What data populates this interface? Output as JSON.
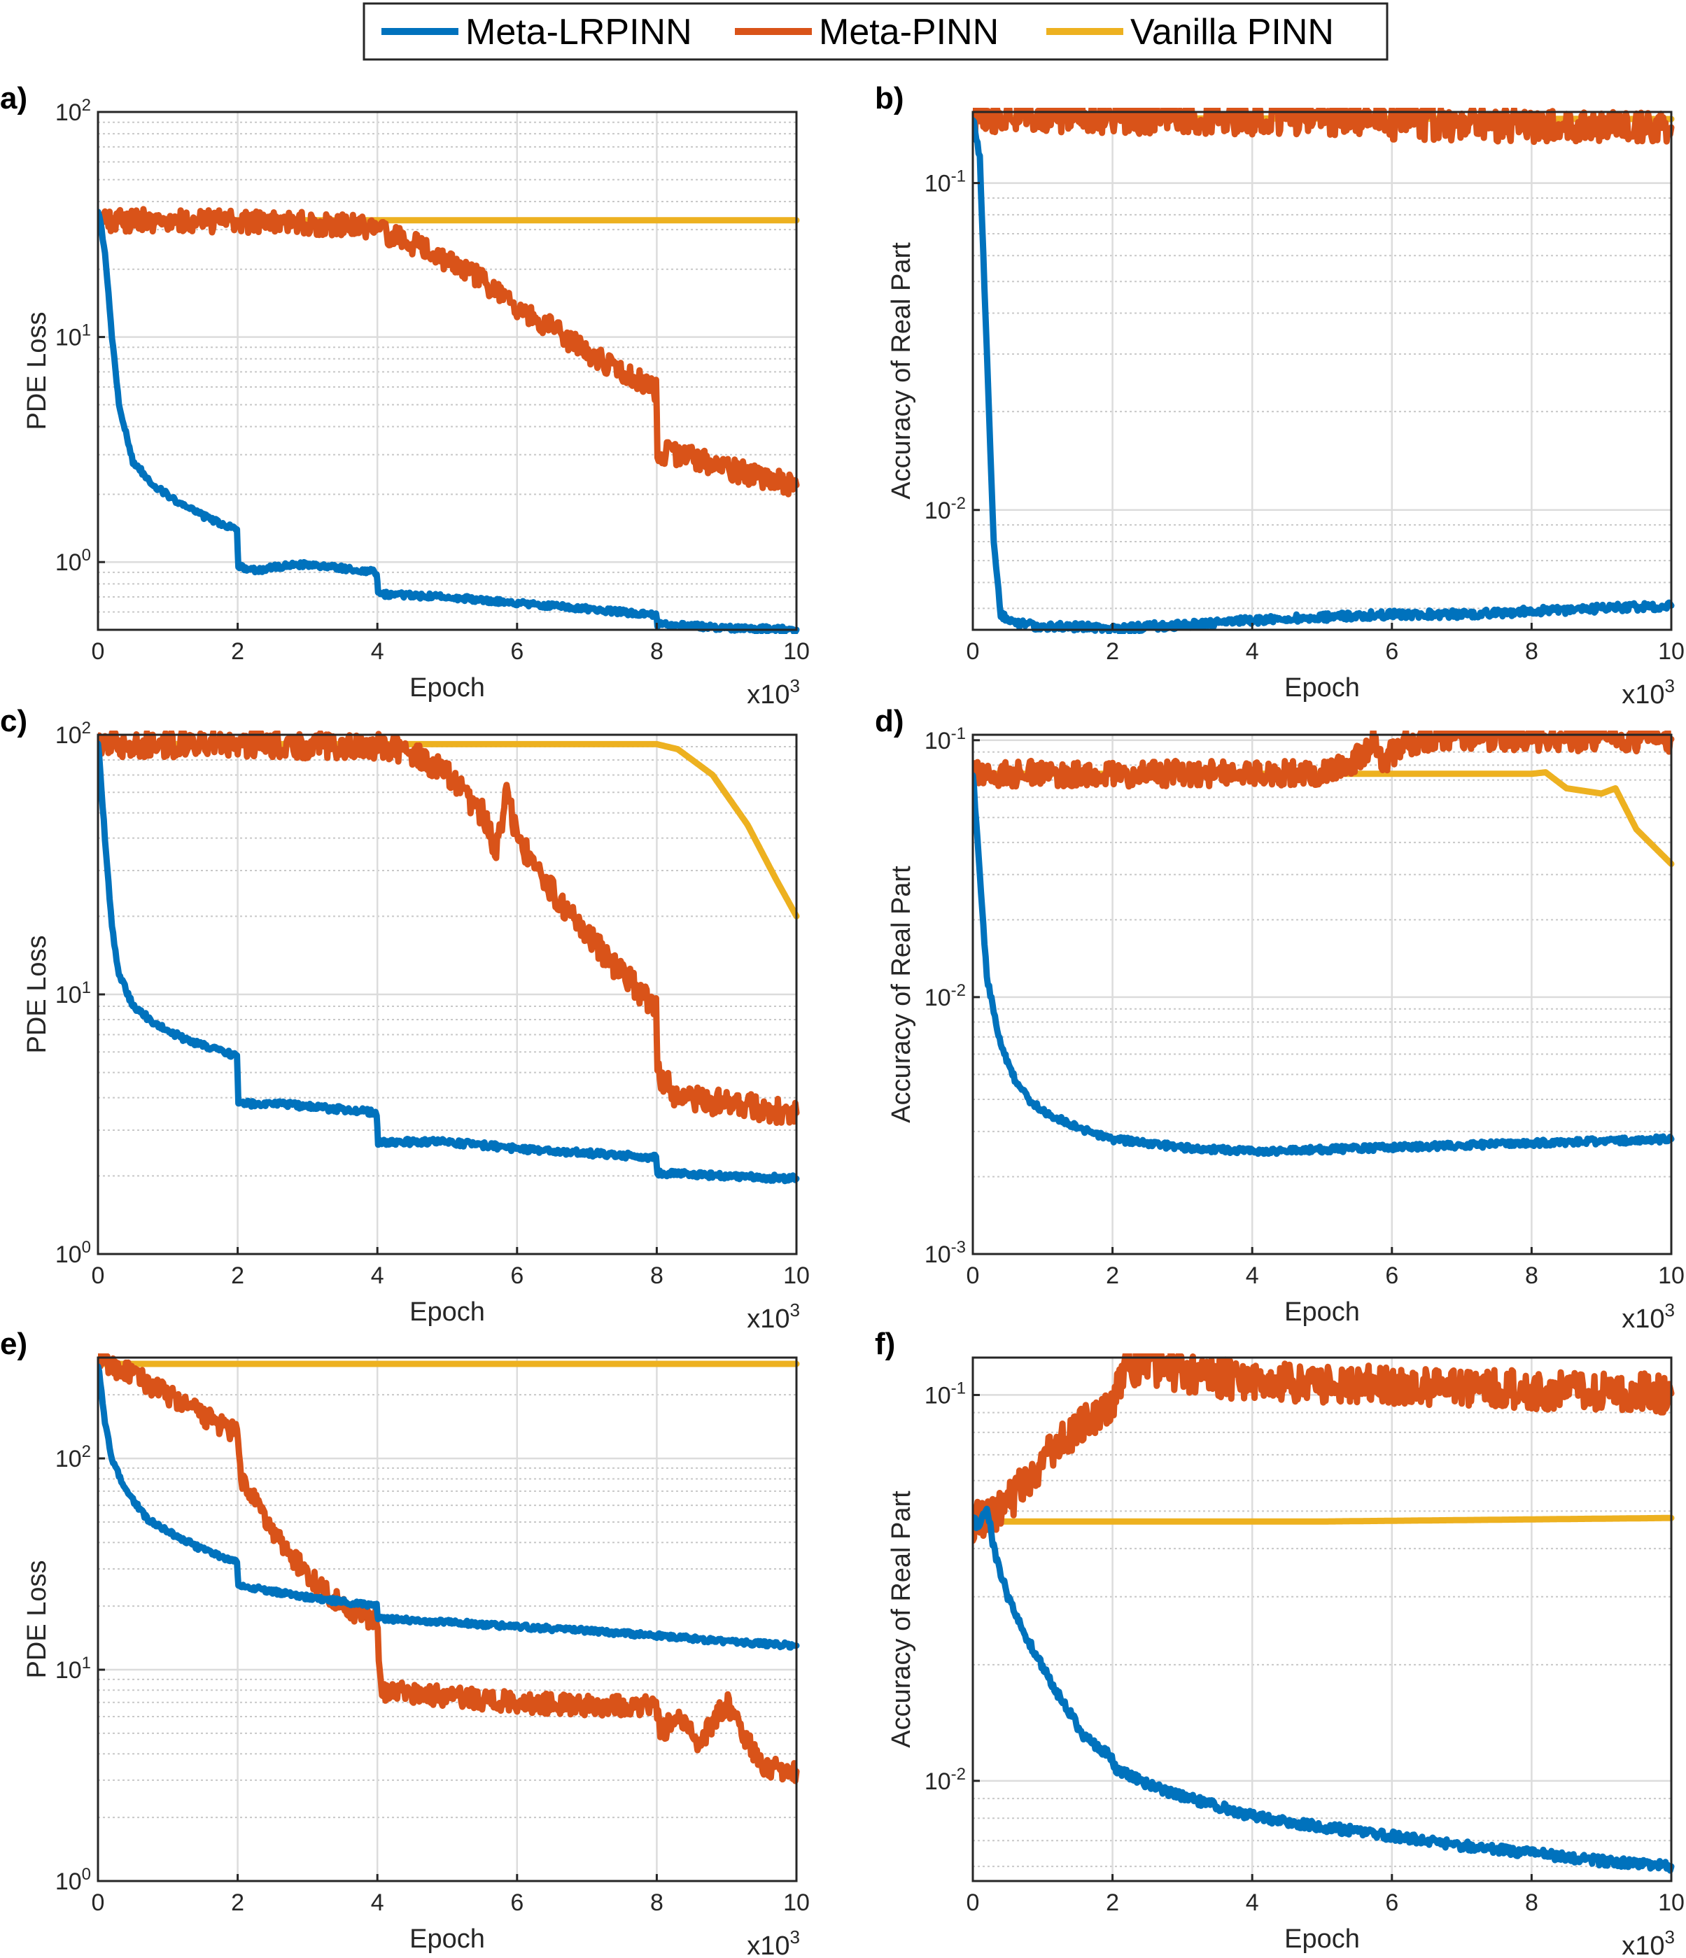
{
  "legend": {
    "entries": [
      {
        "name": "Meta-LRPINN",
        "color": "#0072BD"
      },
      {
        "name": "Meta-PINN",
        "color": "#D95319"
      },
      {
        "name": "Vanilla PINN",
        "color": "#EDB120"
      }
    ]
  },
  "colors": {
    "grid": "#dcdcdc",
    "axes": "#262626"
  },
  "chart_data": [
    {
      "type": "line",
      "panel_label": "a)",
      "xlabel": "Epoch",
      "ylabel": "PDE Loss",
      "x_multiplier_label": "x10",
      "x_multiplier_exp": "3",
      "xlim": [
        0,
        10
      ],
      "yscale": "log",
      "ylim": [
        0.5,
        100
      ],
      "grid": true,
      "xticks": [
        0,
        2,
        4,
        6,
        8,
        10
      ],
      "yticks": [
        {
          "v": 1,
          "base": "10",
          "exp": "0"
        },
        {
          "v": 10,
          "base": "10",
          "exp": "1"
        },
        {
          "v": 100,
          "base": "10",
          "exp": "2"
        }
      ],
      "series": [
        {
          "name": "Meta-LRPINN",
          "x": [
            0,
            0.1,
            0.2,
            0.3,
            0.5,
            0.8,
            1.2,
            1.6,
            1.99,
            2.01,
            2.3,
            2.8,
            3.5,
            3.99,
            4.01,
            5,
            6,
            7,
            7.99,
            8.01,
            9,
            10
          ],
          "y": [
            37,
            24,
            10,
            5,
            2.8,
            2.2,
            1.8,
            1.55,
            1.4,
            0.95,
            0.92,
            0.98,
            0.94,
            0.9,
            0.72,
            0.7,
            0.66,
            0.62,
            0.58,
            0.53,
            0.51,
            0.5
          ]
        },
        {
          "name": "Meta-PINN",
          "x": [
            0,
            1,
            2,
            3,
            3.8,
            4.5,
            5,
            5.5,
            6,
            6.5,
            7,
            7.5,
            7.99,
            8.01,
            8.5,
            9,
            9.5,
            10
          ],
          "y": [
            33,
            33,
            32.5,
            32,
            31,
            26,
            22,
            18,
            13,
            11,
            8.5,
            7,
            5.8,
            3.1,
            2.9,
            2.6,
            2.4,
            2.2
          ]
        },
        {
          "name": "Vanilla PINN",
          "x": [
            0,
            10
          ],
          "y": [
            33,
            33
          ]
        }
      ]
    },
    {
      "type": "line",
      "panel_label": "b)",
      "xlabel": "Epoch",
      "ylabel": "Accuracy of Real Part",
      "x_multiplier_label": "x10",
      "x_multiplier_exp": "3",
      "xlim": [
        0,
        10
      ],
      "yscale": "log",
      "ylim": [
        0.0043,
        0.165
      ],
      "grid": true,
      "xticks": [
        0,
        2,
        4,
        6,
        8,
        10
      ],
      "yticks": [
        {
          "v": 0.01,
          "base": "10",
          "exp": "-2"
        },
        {
          "v": 0.1,
          "base": "10",
          "exp": "-1"
        }
      ],
      "series": [
        {
          "name": "Meta-LRPINN",
          "x": [
            0,
            0.1,
            0.2,
            0.3,
            0.4,
            0.6,
            1,
            1.5,
            2,
            2.5,
            3,
            4,
            5,
            6,
            7,
            8,
            9,
            10
          ],
          "y": [
            0.16,
            0.12,
            0.03,
            0.008,
            0.0048,
            0.0045,
            0.0044,
            0.0044,
            0.0043,
            0.0044,
            0.00445,
            0.0046,
            0.0047,
            0.0048,
            0.0048,
            0.0049,
            0.005,
            0.0051
          ]
        },
        {
          "name": "Meta-PINN",
          "x": [
            0,
            2,
            4,
            5.5,
            5.8,
            6,
            8,
            10
          ],
          "y": [
            0.16,
            0.159,
            0.158,
            0.156,
            0.16,
            0.152,
            0.15,
            0.148
          ]
        },
        {
          "name": "Vanilla PINN",
          "x": [
            0,
            10
          ],
          "y": [
            0.158,
            0.157
          ]
        }
      ]
    },
    {
      "type": "line",
      "panel_label": "c)",
      "xlabel": "Epoch",
      "ylabel": "PDE Loss",
      "x_multiplier_label": "x10",
      "x_multiplier_exp": "3",
      "xlim": [
        0,
        10
      ],
      "yscale": "log",
      "ylim": [
        1,
        100
      ],
      "grid": true,
      "xticks": [
        0,
        2,
        4,
        6,
        8,
        10
      ],
      "yticks": [
        {
          "v": 1,
          "base": "10",
          "exp": "0"
        },
        {
          "v": 10,
          "base": "10",
          "exp": "1"
        },
        {
          "v": 100,
          "base": "10",
          "exp": "2"
        }
      ],
      "series": [
        {
          "name": "Meta-LRPINN",
          "x": [
            0,
            0.1,
            0.2,
            0.3,
            0.5,
            0.8,
            1.2,
            1.6,
            1.99,
            2.01,
            2.5,
            3,
            3.99,
            4.01,
            5,
            6,
            7,
            7.99,
            8.01,
            9,
            10
          ],
          "y": [
            95,
            40,
            18,
            12,
            9,
            7.8,
            6.8,
            6.2,
            5.8,
            3.8,
            3.8,
            3.7,
            3.5,
            2.7,
            2.7,
            2.55,
            2.45,
            2.35,
            2.05,
            2,
            1.95
          ]
        },
        {
          "name": "Meta-PINN",
          "x": [
            0,
            2,
            4,
            4.5,
            5,
            5.5,
            5.7,
            5.85,
            6,
            6.5,
            7,
            7.5,
            7.99,
            8.01,
            8.3,
            9,
            10
          ],
          "y": [
            92,
            92,
            90,
            85,
            70,
            50,
            35,
            60,
            40,
            25,
            17,
            12,
            9,
            5,
            4,
            3.8,
            3.5
          ]
        },
        {
          "name": "Vanilla PINN",
          "x": [
            0,
            8,
            8.3,
            8.8,
            9.3,
            9.7,
            10
          ],
          "y": [
            92,
            92,
            88,
            70,
            45,
            28,
            20
          ]
        }
      ]
    },
    {
      "type": "line",
      "panel_label": "d)",
      "xlabel": "Epoch",
      "ylabel": "Accuracy of Real Part",
      "x_multiplier_label": "x10",
      "x_multiplier_exp": "3",
      "xlim": [
        0,
        10
      ],
      "yscale": "log",
      "ylim": [
        0.001,
        0.105
      ],
      "grid": true,
      "xticks": [
        0,
        2,
        4,
        6,
        8,
        10
      ],
      "yticks": [
        {
          "v": 0.001,
          "base": "10",
          "exp": "-3"
        },
        {
          "v": 0.01,
          "base": "10",
          "exp": "-2"
        },
        {
          "v": 0.1,
          "base": "10",
          "exp": "-1"
        }
      ],
      "series": [
        {
          "name": "Meta-LRPINN",
          "x": [
            0,
            0.1,
            0.2,
            0.4,
            0.6,
            0.8,
            1,
            1.5,
            2,
            3,
            4,
            5,
            6,
            7,
            8,
            9,
            10
          ],
          "y": [
            0.075,
            0.03,
            0.012,
            0.0065,
            0.0048,
            0.004,
            0.0036,
            0.0031,
            0.0028,
            0.0026,
            0.0025,
            0.00255,
            0.0026,
            0.00265,
            0.0027,
            0.00275,
            0.0028
          ]
        },
        {
          "name": "Meta-PINN",
          "x": [
            0,
            4,
            5,
            5.4,
            5.6,
            5.75,
            5.85,
            6.2,
            7,
            8,
            10
          ],
          "y": [
            0.074,
            0.074,
            0.075,
            0.08,
            0.09,
            0.1,
            0.082,
            0.098,
            0.103,
            0.102,
            0.101
          ]
        },
        {
          "name": "Vanilla PINN",
          "x": [
            0,
            8,
            8.2,
            8.5,
            9,
            9.2,
            9.5,
            10
          ],
          "y": [
            0.074,
            0.074,
            0.075,
            0.065,
            0.062,
            0.065,
            0.045,
            0.033
          ]
        }
      ]
    },
    {
      "type": "line",
      "panel_label": "e)",
      "xlabel": "Epoch",
      "ylabel": "PDE Loss",
      "x_multiplier_label": "x10",
      "x_multiplier_exp": "3",
      "xlim": [
        0,
        10
      ],
      "yscale": "log",
      "ylim": [
        1,
        300
      ],
      "grid": true,
      "xticks": [
        0,
        2,
        4,
        6,
        8,
        10
      ],
      "yticks": [
        {
          "v": 1,
          "base": "10",
          "exp": "0"
        },
        {
          "v": 10,
          "base": "10",
          "exp": "1"
        },
        {
          "v": 100,
          "base": "10",
          "exp": "2"
        }
      ],
      "series": [
        {
          "name": "Meta-LRPINN",
          "x": [
            0,
            0.1,
            0.2,
            0.4,
            0.7,
            1,
            1.5,
            1.99,
            2.01,
            2.5,
            3,
            3.99,
            4.01,
            5,
            6,
            7,
            8,
            9,
            10
          ],
          "y": [
            280,
            150,
            100,
            70,
            52,
            45,
            37,
            32,
            25,
            23.5,
            22,
            20,
            17.5,
            16.8,
            16,
            15.3,
            14.5,
            13.6,
            13
          ]
        },
        {
          "name": "Meta-PINN",
          "x": [
            0,
            0.5,
            1,
            1.5,
            1.99,
            2.05,
            2.5,
            3,
            3.5,
            3.99,
            4.05,
            5,
            6,
            7,
            7.99,
            8.05,
            8.3,
            8.6,
            9,
            9.5,
            10
          ],
          "y": [
            290,
            250,
            200,
            160,
            130,
            80,
            45,
            28,
            20,
            17,
            8,
            7.5,
            7,
            6.8,
            6.8,
            5,
            6,
            4.5,
            7,
            3.5,
            3.3
          ]
        },
        {
          "name": "Vanilla PINN",
          "x": [
            0,
            10
          ],
          "y": [
            280,
            280
          ]
        }
      ]
    },
    {
      "type": "line",
      "panel_label": "f)",
      "xlabel": "Epoch",
      "ylabel": "Accuracy of Real Part",
      "x_multiplier_label": "x10",
      "x_multiplier_exp": "3",
      "xlim": [
        0,
        10
      ],
      "yscale": "log",
      "ylim": [
        0.0055,
        0.125
      ],
      "grid": true,
      "xticks": [
        0,
        2,
        4,
        6,
        8,
        10
      ],
      "yticks": [
        {
          "v": 0.01,
          "base": "10",
          "exp": "-2"
        },
        {
          "v": 0.1,
          "base": "10",
          "exp": "-1"
        }
      ],
      "series": [
        {
          "name": "Meta-LRPINN",
          "x": [
            0,
            0.1,
            0.2,
            0.3,
            0.5,
            0.8,
            1.2,
            1.6,
            1.99,
            2.05,
            2.5,
            3,
            3.5,
            4,
            5,
            6,
            7,
            8,
            9,
            10
          ],
          "y": [
            0.047,
            0.046,
            0.052,
            0.04,
            0.03,
            0.023,
            0.017,
            0.013,
            0.0115,
            0.0107,
            0.0098,
            0.0091,
            0.0086,
            0.0081,
            0.0076,
            0.0072,
            0.0068,
            0.0065,
            0.0062,
            0.006
          ]
        },
        {
          "name": "Meta-PINN",
          "x": [
            0,
            0.3,
            0.6,
            1,
            1.5,
            2,
            2.2,
            2.5,
            3,
            4,
            5,
            6,
            7,
            8,
            9,
            10
          ],
          "y": [
            0.047,
            0.048,
            0.055,
            0.068,
            0.082,
            0.095,
            0.118,
            0.12,
            0.114,
            0.108,
            0.107,
            0.106,
            0.104,
            0.103,
            0.102,
            0.101
          ]
        },
        {
          "name": "Vanilla PINN",
          "x": [
            0,
            5,
            10
          ],
          "y": [
            0.047,
            0.047,
            0.048
          ]
        }
      ]
    }
  ]
}
